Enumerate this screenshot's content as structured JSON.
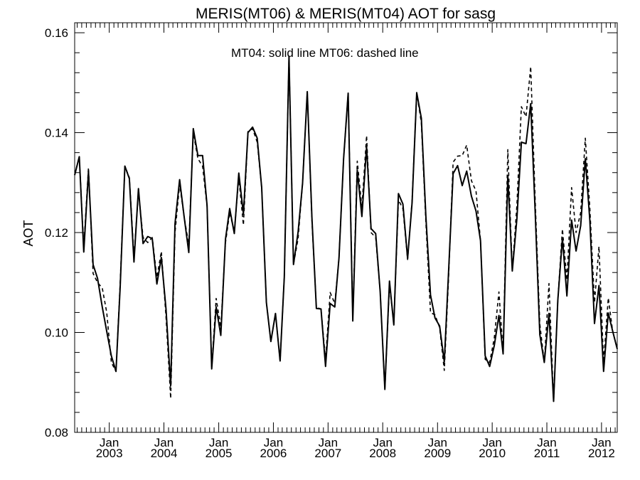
{
  "chart_data": {
    "type": "line",
    "title": "MERIS(MT06) & MERIS(MT04)  AOT for sasg",
    "annotation": "MT04: solid line   MT06: dashed line",
    "xlabel": "",
    "ylabel": "AOT",
    "xlim": [
      "2002-05-15",
      "2012-04-15"
    ],
    "ylim": [
      0.08,
      0.162
    ],
    "y_ticks": [
      0.08,
      0.1,
      0.12,
      0.14,
      0.16
    ],
    "y_tick_labels": [
      "0.08",
      "0.10",
      "0.12",
      "0.14",
      "0.16"
    ],
    "x_ticks": [
      {
        "date": "2003-01-01",
        "month": "Jan",
        "year": "2003"
      },
      {
        "date": "2004-01-01",
        "month": "Jan",
        "year": "2004"
      },
      {
        "date": "2005-01-01",
        "month": "Jan",
        "year": "2005"
      },
      {
        "date": "2006-01-01",
        "month": "Jan",
        "year": "2006"
      },
      {
        "date": "2007-01-01",
        "month": "Jan",
        "year": "2007"
      },
      {
        "date": "2008-01-01",
        "month": "Jan",
        "year": "2008"
      },
      {
        "date": "2009-01-01",
        "month": "Jan",
        "year": "2009"
      },
      {
        "date": "2010-01-01",
        "month": "Jan",
        "year": "2010"
      },
      {
        "date": "2011-01-01",
        "month": "Jan",
        "year": "2011"
      },
      {
        "date": "2012-01-01",
        "month": "Jan",
        "year": "2012"
      }
    ],
    "grid": false,
    "x": [
      "2002-05",
      "2002-06",
      "2002-07",
      "2002-08",
      "2002-09",
      "2002-10",
      "2002-11",
      "2002-12",
      "2003-01",
      "2003-02",
      "2003-03",
      "2003-04",
      "2003-05",
      "2003-06",
      "2003-07",
      "2003-08",
      "2003-09",
      "2003-10",
      "2003-11",
      "2003-12",
      "2004-01",
      "2004-02",
      "2004-03",
      "2004-04",
      "2004-05",
      "2004-06",
      "2004-07",
      "2004-08",
      "2004-09",
      "2004-10",
      "2004-11",
      "2004-12",
      "2005-01",
      "2005-02",
      "2005-03",
      "2005-04",
      "2005-05",
      "2005-06",
      "2005-07",
      "2005-08",
      "2005-09",
      "2005-10",
      "2005-11",
      "2005-12",
      "2006-01",
      "2006-02",
      "2006-03",
      "2006-04",
      "2006-05",
      "2006-06",
      "2006-07",
      "2006-08",
      "2006-09",
      "2006-10",
      "2006-11",
      "2006-12",
      "2007-01",
      "2007-02",
      "2007-03",
      "2007-04",
      "2007-05",
      "2007-06",
      "2007-07",
      "2007-08",
      "2007-09",
      "2007-10",
      "2007-11",
      "2007-12",
      "2008-01",
      "2008-02",
      "2008-03",
      "2008-04",
      "2008-05",
      "2008-06",
      "2008-07",
      "2008-08",
      "2008-09",
      "2008-10",
      "2008-11",
      "2008-12",
      "2009-01",
      "2009-02",
      "2009-03",
      "2009-04",
      "2009-05",
      "2009-06",
      "2009-07",
      "2009-08",
      "2009-09",
      "2009-10",
      "2009-11",
      "2009-12",
      "2010-01",
      "2010-02",
      "2010-03",
      "2010-04",
      "2010-05",
      "2010-06",
      "2010-07",
      "2010-08",
      "2010-09",
      "2010-10",
      "2010-11",
      "2010-12",
      "2011-01",
      "2011-02",
      "2011-03",
      "2011-04",
      "2011-05",
      "2011-06",
      "2011-07",
      "2011-08",
      "2011-09",
      "2011-10",
      "2011-11",
      "2011-12",
      "2012-01",
      "2012-02",
      "2012-03",
      "2012-04"
    ],
    "series": [
      {
        "name": "MT04",
        "style": "solid",
        "color": "#000000",
        "values": [
          0.1315,
          0.1352,
          0.1161,
          0.1322,
          0.1136,
          0.1108,
          0.1051,
          0.1002,
          0.0953,
          0.0922,
          0.1091,
          0.1333,
          0.1308,
          0.1141,
          0.1288,
          0.1178,
          0.1192,
          0.1188,
          0.1097,
          0.115,
          0.1046,
          0.0893,
          0.1218,
          0.1306,
          0.1232,
          0.116,
          0.1408,
          0.1354,
          0.1354,
          0.1254,
          0.0927,
          0.1051,
          0.0994,
          0.1187,
          0.1248,
          0.1198,
          0.1319,
          0.1237,
          0.14,
          0.1411,
          0.1389,
          0.129,
          0.106,
          0.0982,
          0.1038,
          0.0943,
          0.1111,
          0.1553,
          0.1136,
          0.1201,
          0.1299,
          0.1482,
          0.1231,
          0.1048,
          0.1047,
          0.0932,
          0.1058,
          0.1051,
          0.1149,
          0.1348,
          0.1479,
          0.1023,
          0.1325,
          0.1232,
          0.1372,
          0.1208,
          0.1198,
          0.1082,
          0.0886,
          0.1103,
          0.1015,
          0.1278,
          0.1257,
          0.1148,
          0.126,
          0.148,
          0.1429,
          0.1232,
          0.1075,
          0.1029,
          0.1013,
          0.0941,
          0.1118,
          0.1318,
          0.1334,
          0.1294,
          0.1323,
          0.1273,
          0.1243,
          0.1184,
          0.0953,
          0.0932,
          0.0974,
          0.1034,
          0.0957,
          0.1314,
          0.1123,
          0.1228,
          0.1381,
          0.1378,
          0.1458,
          0.1241,
          0.0996,
          0.094,
          0.1038,
          0.0862,
          0.1064,
          0.1189,
          0.1073,
          0.1225,
          0.1163,
          0.1214,
          0.1348,
          0.1224,
          0.1018,
          0.1094,
          0.0922,
          0.1039,
          0.1003,
          0.0967
        ]
      },
      {
        "name": "MT06",
        "style": "dashed",
        "color": "#000000",
        "values": [
          0.1315,
          0.1352,
          0.117,
          0.133,
          0.1118,
          0.11,
          0.1089,
          0.104,
          0.094,
          0.0922,
          0.11,
          0.1333,
          0.131,
          0.115,
          0.1282,
          0.119,
          0.118,
          0.119,
          0.111,
          0.1162,
          0.103,
          0.0868,
          0.12,
          0.1297,
          0.1232,
          0.1175,
          0.14,
          0.1348,
          0.1333,
          0.1252,
          0.0931,
          0.1068,
          0.101,
          0.118,
          0.124,
          0.1202,
          0.131,
          0.1215,
          0.1402,
          0.1408,
          0.1381,
          0.129,
          0.106,
          0.0982,
          0.1038,
          0.0943,
          0.1111,
          0.1553,
          0.1136,
          0.1188,
          0.1299,
          0.1482,
          0.1225,
          0.105,
          0.1047,
          0.0945,
          0.108,
          0.1058,
          0.1149,
          0.1348,
          0.1479,
          0.103,
          0.1343,
          0.125,
          0.1394,
          0.12,
          0.119,
          0.1082,
          0.0886,
          0.1096,
          0.1018,
          0.1265,
          0.1248,
          0.1146,
          0.1265,
          0.148,
          0.142,
          0.122,
          0.104,
          0.1035,
          0.101,
          0.0924,
          0.1105,
          0.1341,
          0.1353,
          0.1354,
          0.1375,
          0.1304,
          0.1283,
          0.1184,
          0.0946,
          0.094,
          0.0989,
          0.1081,
          0.096,
          0.1366,
          0.1123,
          0.1255,
          0.1452,
          0.1432,
          0.1532,
          0.1265,
          0.1017,
          0.094,
          0.1098,
          0.0862,
          0.1064,
          0.1207,
          0.1105,
          0.129,
          0.12,
          0.124,
          0.1389,
          0.1248,
          0.106,
          0.1172,
          0.094,
          0.1069,
          0.1003,
          0.0967
        ]
      }
    ]
  }
}
